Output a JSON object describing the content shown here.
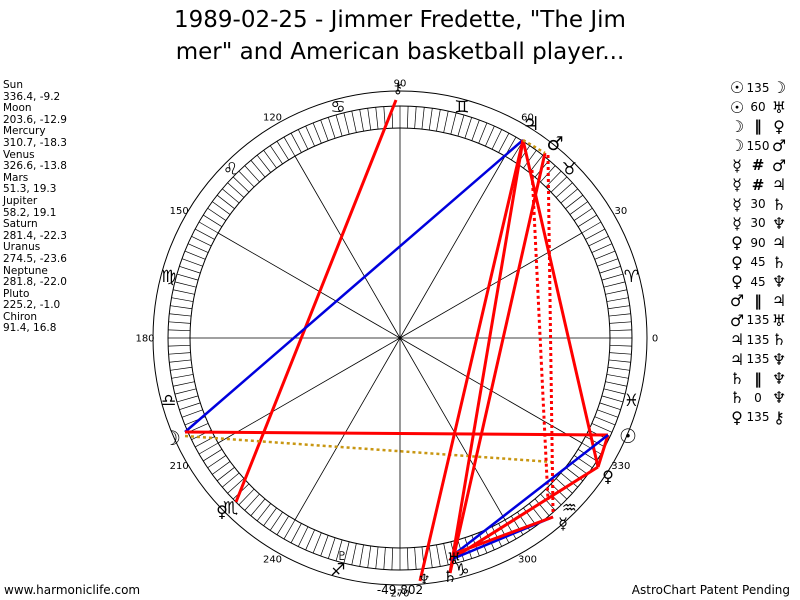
{
  "title": {
    "line1": "1989-02-25 - Jimmer Fredette, \"The Jim",
    "line2": "mer\" and American basketball player..."
  },
  "planets": [
    {
      "name": "Sun",
      "coords": "336.4, -9.2"
    },
    {
      "name": "Moon",
      "coords": "203.6, -12.9"
    },
    {
      "name": "Mercury",
      "coords": "310.7, -18.3"
    },
    {
      "name": "Venus",
      "coords": "326.6, -13.8"
    },
    {
      "name": "Mars",
      "coords": "51.3, 19.3"
    },
    {
      "name": "Jupiter",
      "coords": "58.2, 19.1"
    },
    {
      "name": "Saturn",
      "coords": "281.4, -22.3"
    },
    {
      "name": "Uranus",
      "coords": "274.5, -23.6"
    },
    {
      "name": "Neptune",
      "coords": "281.8, -22.0"
    },
    {
      "name": "Pluto",
      "coords": "225.2, -1.0"
    },
    {
      "name": "Chiron",
      "coords": "91.4, 16.8"
    }
  ],
  "aspects": [
    {
      "p1": "☉",
      "angle": "135",
      "p2": "☽"
    },
    {
      "p1": "☉",
      "angle": "60",
      "p2": "♅"
    },
    {
      "p1": "☽",
      "angle": "‖",
      "p2": "♀"
    },
    {
      "p1": "☽",
      "angle": "150",
      "p2": "♂"
    },
    {
      "p1": "☿",
      "angle": "#",
      "p2": "♂"
    },
    {
      "p1": "☿",
      "angle": "#",
      "p2": "♃"
    },
    {
      "p1": "☿",
      "angle": "30",
      "p2": "♄"
    },
    {
      "p1": "☿",
      "angle": "30",
      "p2": "♆"
    },
    {
      "p1": "♀",
      "angle": "90",
      "p2": "♃"
    },
    {
      "p1": "♀",
      "angle": "45",
      "p2": "♄"
    },
    {
      "p1": "♀",
      "angle": "45",
      "p2": "♆"
    },
    {
      "p1": "♂",
      "angle": "‖",
      "p2": "♃"
    },
    {
      "p1": "♂",
      "angle": "135",
      "p2": "♅"
    },
    {
      "p1": "♃",
      "angle": "135",
      "p2": "♄"
    },
    {
      "p1": "♃",
      "angle": "135",
      "p2": "♆"
    },
    {
      "p1": "♄",
      "angle": "‖",
      "p2": "♆"
    },
    {
      "p1": "♄",
      "angle": "0",
      "p2": "♆"
    },
    {
      "p1": "♀",
      "angle": "135",
      "p2": "⚷"
    }
  ],
  "degree_labels": [
    "0",
    "30",
    "60",
    "90",
    "120",
    "150",
    "180",
    "210",
    "240",
    "270",
    "300",
    "330"
  ],
  "zodiac_signs": [
    "♈",
    "♉",
    "♊",
    "♋",
    "♌",
    "♍",
    "♎",
    "♏",
    "♐",
    "♑",
    "♒",
    "♓"
  ],
  "chart_glyphs": {
    "sun": "☉",
    "moon": "☽",
    "mercury": "☿",
    "venus": "♀",
    "mars": "♂",
    "jupiter": "♃",
    "saturn": "♄",
    "uranus": "♅",
    "neptune": "♆",
    "pluto": "♇",
    "chiron": "⚷"
  },
  "center_value": "-49,802",
  "footer": {
    "left": "www.harmoniclife.com",
    "right": "AstroChart Patent Pending"
  },
  "colors": {
    "red": "#ff0000",
    "blue": "#0000dd",
    "gold": "#c89611",
    "ink": "#000000"
  }
}
